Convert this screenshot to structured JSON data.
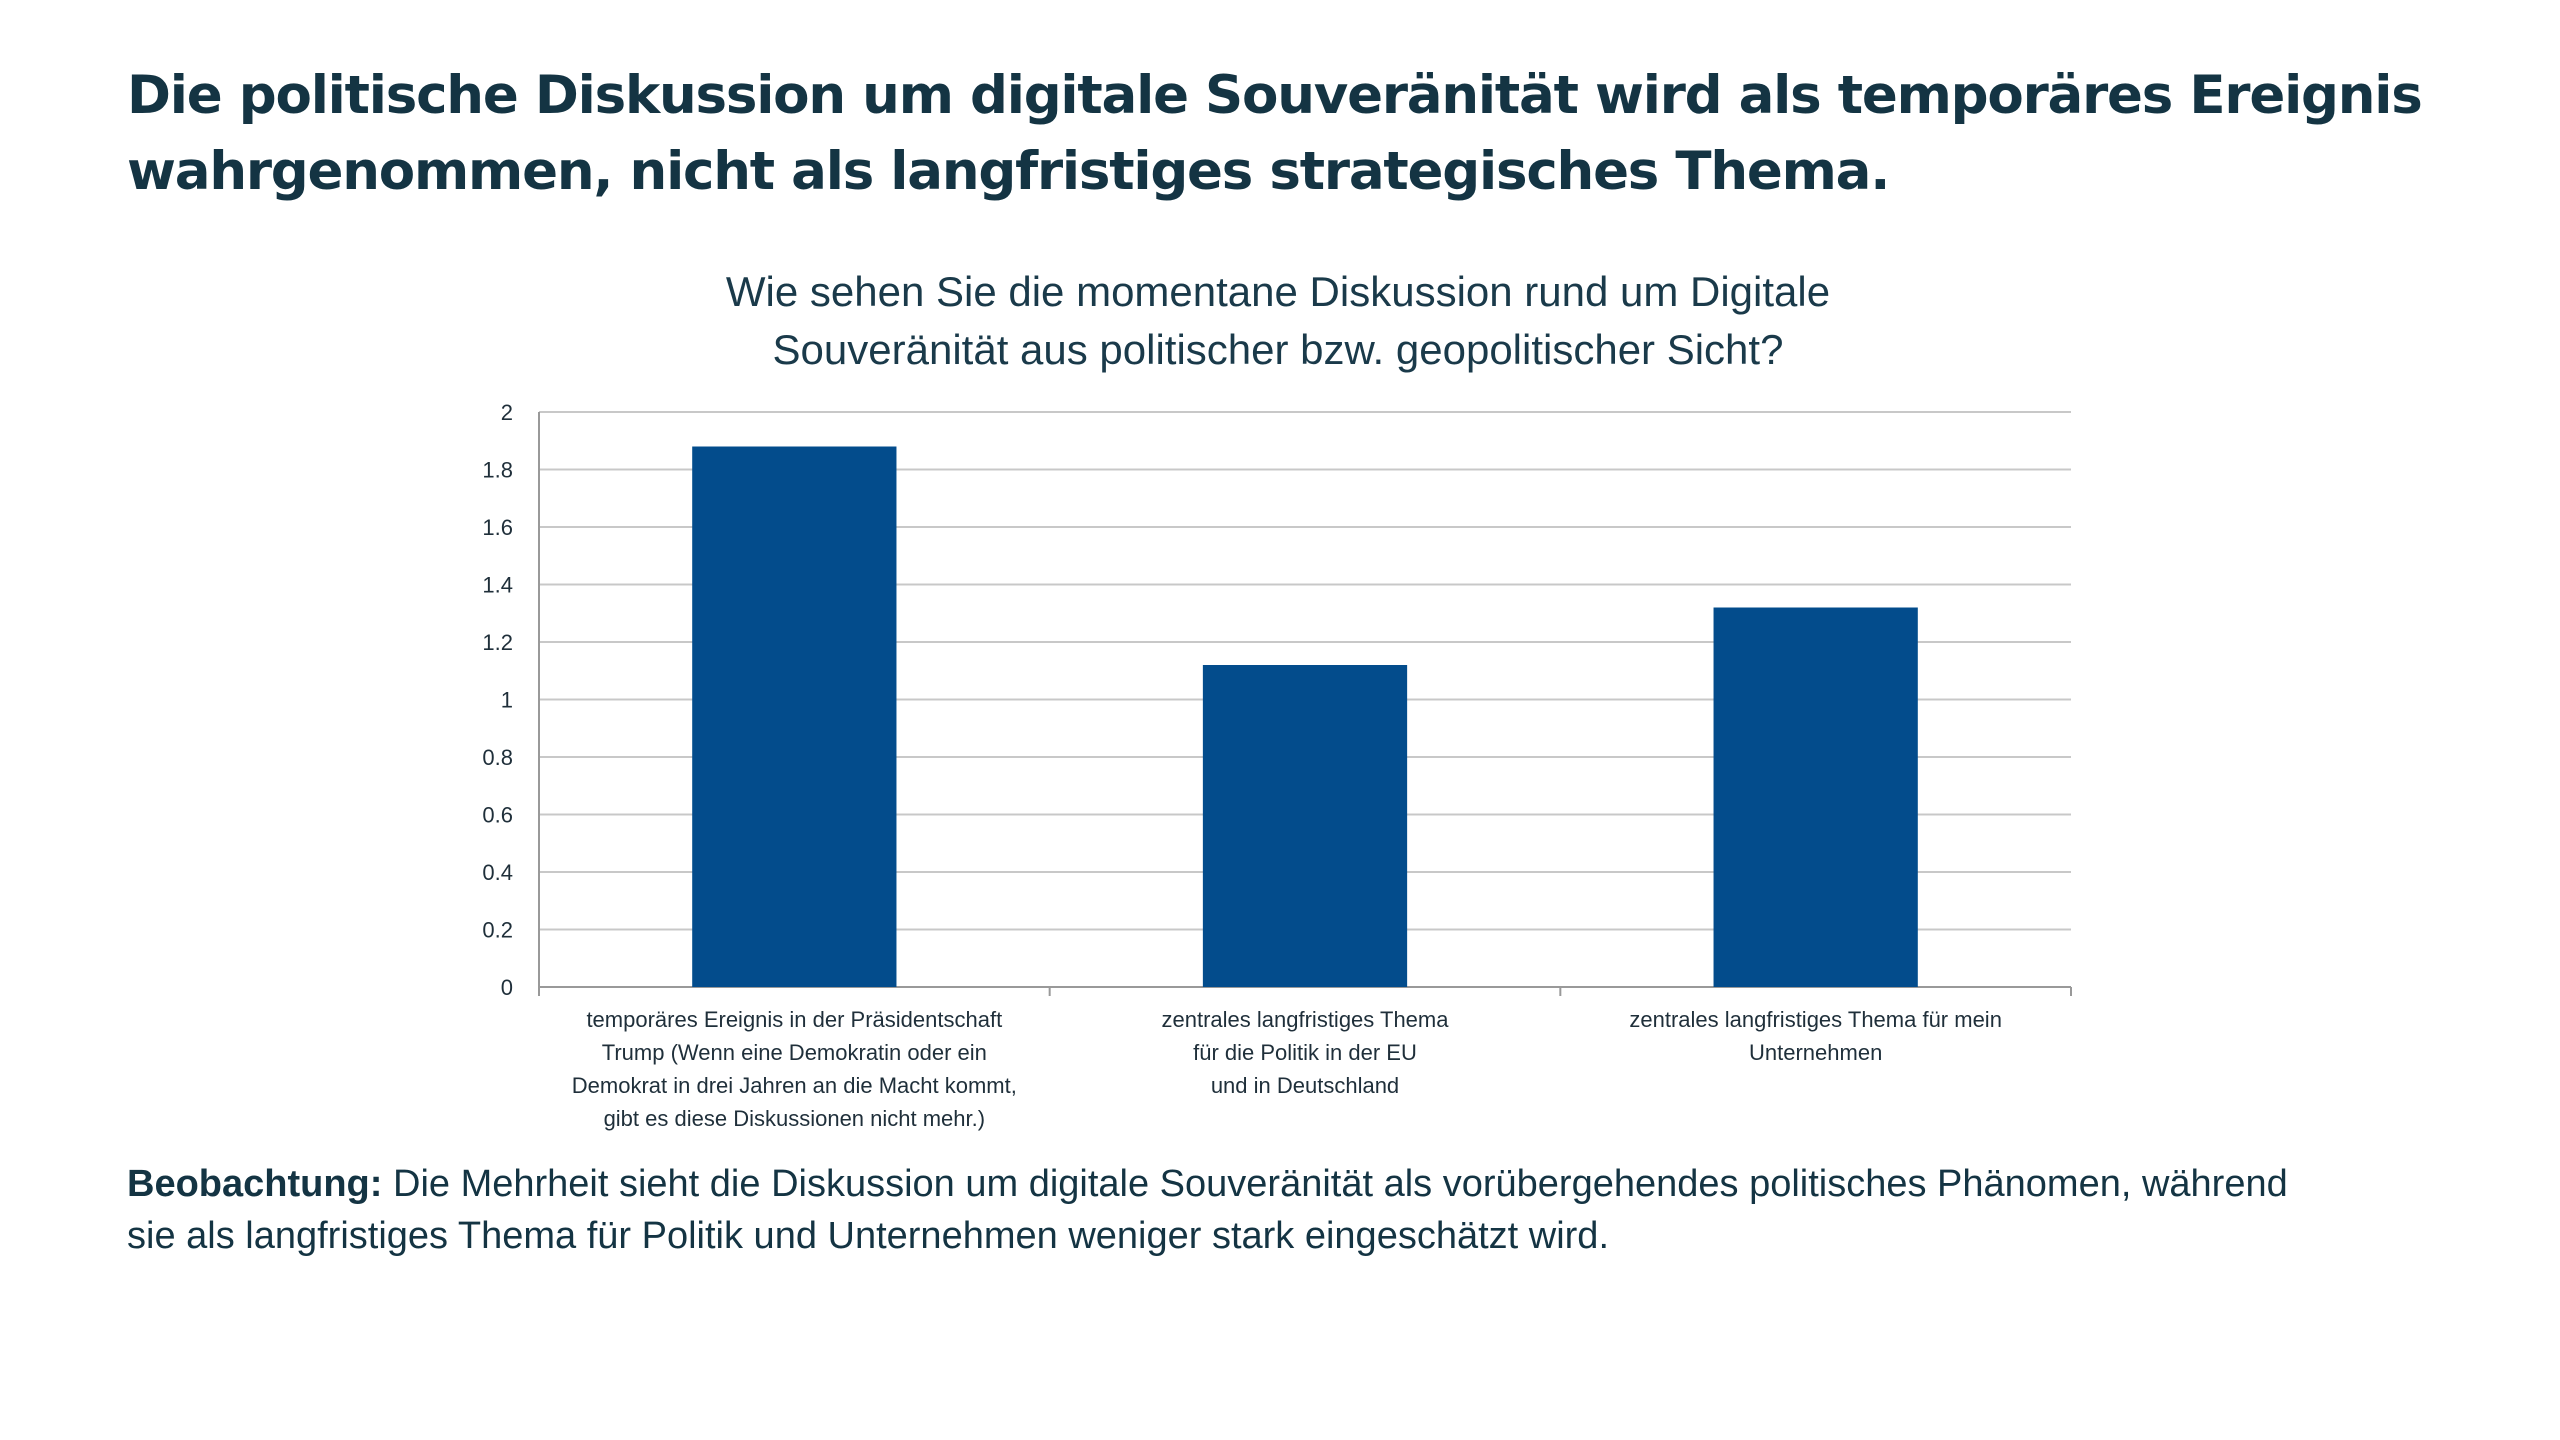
{
  "slide": {
    "title_lines": [
      "Die politische Diskussion um digitale Souveränität wird als temporäres Ereignis",
      "wahrgenommen, nicht als langfristiges strategisches Thema."
    ],
    "observation_label": "Beobachtung:",
    "observation_lines": [
      " Die Mehrheit sieht die Diskussion um digitale Souveränität als vorübergehendes politisches Phänomen, während",
      "sie als langfristiges Thema für Politik und Unternehmen weniger stark eingeschätzt wird."
    ]
  },
  "colors": {
    "bar": "#034c8c",
    "title": "#143443",
    "text": "#1f2f3a",
    "grid": "#c8c8c8",
    "axis": "#999999"
  },
  "chart_data": {
    "type": "bar",
    "title_lines": [
      "Wie sehen Sie die momentane Diskussion rund um Digitale",
      "Souveränität aus politischer bzw. geopolitischer Sicht?"
    ],
    "categories": [
      [
        "temporäres Ereignis in der Präsidentschaft",
        "Trump (Wenn eine Demokratin oder ein",
        "Demokrat in drei Jahren an die Macht kommt,",
        "gibt es diese Diskussionen nicht mehr.)"
      ],
      [
        "zentrales langfristiges Thema",
        "für die Politik in der EU",
        "und in Deutschland"
      ],
      [
        "zentrales langfristiges Thema für mein",
        "Unternehmen"
      ]
    ],
    "values": [
      1.88,
      1.12,
      1.32
    ],
    "ylim": [
      0,
      2
    ],
    "yticks": [
      "0",
      "0.2",
      "0.4",
      "0.6",
      "0.8",
      "1",
      "1.2",
      "1.4",
      "1.6",
      "1.8",
      "2"
    ],
    "xlabel": "",
    "ylabel": "",
    "grid": true,
    "legend": "none"
  }
}
